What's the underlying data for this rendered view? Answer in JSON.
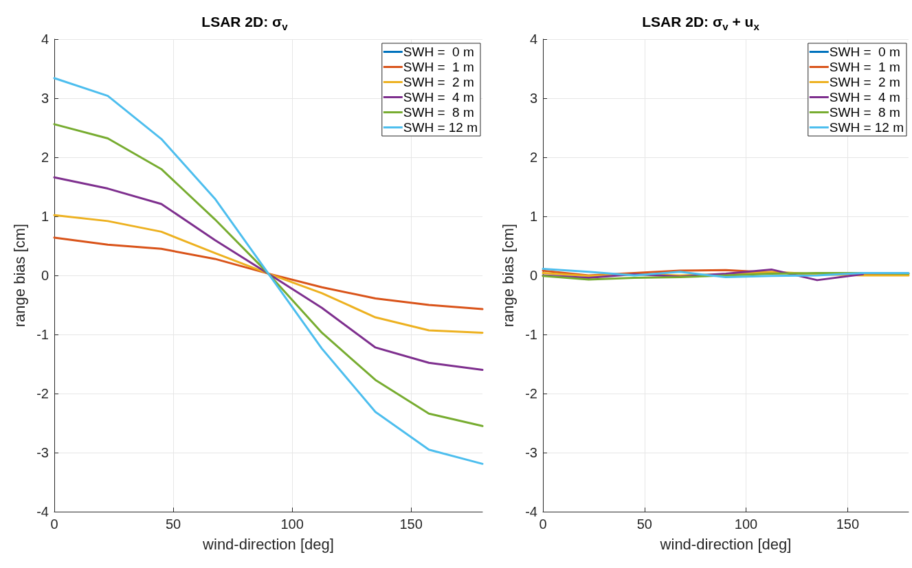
{
  "chart_data": [
    {
      "type": "line",
      "title": "LSAR 2D: σ$_{v}$",
      "xlabel": "wind-direction [deg]",
      "ylabel": "range bias [cm]",
      "x": [
        0,
        22.5,
        45,
        67.5,
        90,
        112.5,
        135,
        157.5,
        180
      ],
      "xlim": [
        0,
        180
      ],
      "xticks": [
        0,
        50,
        100,
        150
      ],
      "ylim": [
        -4,
        4
      ],
      "yticks": [
        -4,
        -3,
        -2,
        -1,
        0,
        1,
        2,
        3,
        4
      ],
      "grid": true,
      "legend": "top right",
      "marker": "none",
      "line_style": "solid",
      "series": [
        {
          "name": "SWH =  0 m",
          "color": "#0072bd",
          "values": [
            null,
            null,
            null,
            null,
            null,
            null,
            null,
            null,
            null
          ]
        },
        {
          "name": "SWH =  1 m",
          "color": "#d95319",
          "values": [
            0.64,
            0.52,
            0.45,
            0.28,
            0.03,
            -0.2,
            -0.39,
            -0.5,
            -0.57
          ]
        },
        {
          "name": "SWH =  2 m",
          "color": "#edb120",
          "values": [
            1.02,
            0.92,
            0.74,
            0.38,
            0.03,
            -0.3,
            -0.71,
            -0.93,
            -0.97
          ]
        },
        {
          "name": "SWH =  4 m",
          "color": "#7e2f8e",
          "values": [
            1.66,
            1.47,
            1.21,
            0.6,
            0.03,
            -0.55,
            -1.22,
            -1.48,
            -1.6
          ]
        },
        {
          "name": "SWH =  8 m",
          "color": "#77ac30",
          "values": [
            2.56,
            2.32,
            1.8,
            0.95,
            0.03,
            -0.97,
            -1.77,
            -2.34,
            -2.55
          ]
        },
        {
          "name": "SWH = 12 m",
          "color": "#4dbeee",
          "values": [
            3.34,
            3.04,
            2.31,
            1.3,
            0.03,
            -1.24,
            -2.31,
            -2.95,
            -3.19
          ]
        }
      ]
    },
    {
      "type": "line",
      "title": "LSAR 2D: σ$_{v}$ + u$_{x}$",
      "xlabel": "wind-direction [deg]",
      "ylabel": "range bias [cm]",
      "x": [
        0,
        22.5,
        45,
        67.5,
        90,
        112.5,
        135,
        157.5,
        180
      ],
      "xlim": [
        0,
        180
      ],
      "xticks": [
        0,
        50,
        100,
        150
      ],
      "ylim": [
        -4,
        4
      ],
      "yticks": [
        -4,
        -3,
        -2,
        -1,
        0,
        1,
        2,
        3,
        4
      ],
      "grid": true,
      "legend": "top right",
      "marker": "none",
      "line_style": "solid",
      "series": [
        {
          "name": "SWH =  0 m",
          "color": "#0072bd",
          "values": [
            null,
            null,
            null,
            null,
            null,
            null,
            null,
            null,
            null
          ]
        },
        {
          "name": "SWH =  1 m",
          "color": "#d95319",
          "values": [
            0.08,
            0.0,
            0.04,
            0.08,
            0.09,
            0.05,
            0.02,
            0.02,
            0.03
          ]
        },
        {
          "name": "SWH =  2 m",
          "color": "#edb120",
          "values": [
            0.04,
            -0.01,
            0.02,
            0.0,
            0.02,
            0.06,
            0.02,
            0.0,
            0.0
          ]
        },
        {
          "name": "SWH =  4 m",
          "color": "#7e2f8e",
          "values": [
            0.0,
            -0.04,
            0.02,
            -0.02,
            0.03,
            0.1,
            -0.08,
            0.02,
            null
          ]
        },
        {
          "name": "SWH =  8 m",
          "color": "#77ac30",
          "values": [
            -0.01,
            -0.07,
            -0.04,
            -0.03,
            0.0,
            0.03,
            0.04,
            0.04,
            0.03
          ]
        },
        {
          "name": "SWH = 12 m",
          "color": "#4dbeee",
          "values": [
            0.11,
            0.06,
            0.0,
            0.06,
            -0.03,
            -0.01,
            0.0,
            0.04,
            0.04
          ]
        }
      ]
    }
  ]
}
